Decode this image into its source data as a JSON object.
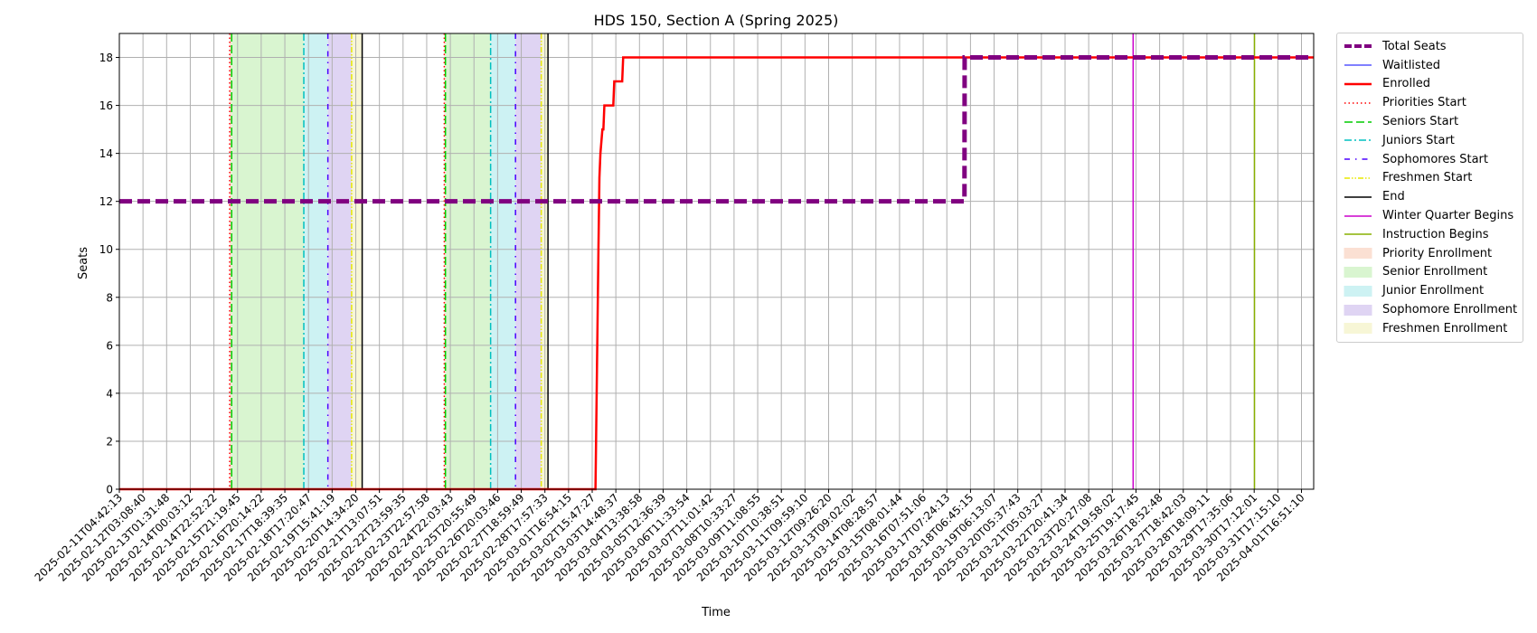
{
  "chart_data": {
    "type": "line",
    "title": "HDS 150, Section A (Spring 2025)",
    "xlabel": "Time",
    "ylabel": "Seats",
    "x_range": [
      "2025-02-11T04:42:13",
      "2025-04-02T12:00:00"
    ],
    "ylim": [
      0,
      19
    ],
    "yticks": [
      0,
      2,
      4,
      6,
      8,
      10,
      12,
      14,
      16,
      18
    ],
    "grid": true,
    "legend_position": "outside-top-right",
    "xtick_labels": [
      "2025-02-11T04:42:13",
      "2025-02-12T03:08:40",
      "2025-02-13T01:31:48",
      "2025-02-14T00:03:12",
      "2025-02-14T22:52:22",
      "2025-02-15T21:19:45",
      "2025-02-16T20:14:22",
      "2025-02-17T18:39:35",
      "2025-02-18T17:20:47",
      "2025-02-19T15:41:19",
      "2025-02-20T14:34:20",
      "2025-02-21T13:07:51",
      "2025-02-22T23:59:35",
      "2025-02-23T22:57:58",
      "2025-02-24T22:03:43",
      "2025-02-25T20:55:49",
      "2025-02-26T20:03:46",
      "2025-02-27T18:59:49",
      "2025-02-28T17:57:33",
      "2025-03-01T16:54:15",
      "2025-03-02T15:47:27",
      "2025-03-03T14:48:37",
      "2025-03-04T13:38:58",
      "2025-03-05T12:36:39",
      "2025-03-06T11:33:54",
      "2025-03-07T11:01:42",
      "2025-03-08T10:33:27",
      "2025-03-09T11:08:55",
      "2025-03-10T10:38:51",
      "2025-03-11T09:59:10",
      "2025-03-12T09:26:20",
      "2025-03-13T09:02:02",
      "2025-03-14T08:28:57",
      "2025-03-15T08:01:44",
      "2025-03-16T07:51:06",
      "2025-03-17T07:24:13",
      "2025-03-18T06:45:15",
      "2025-03-19T06:13:07",
      "2025-03-20T05:37:43",
      "2025-03-21T05:03:27",
      "2025-03-22T20:41:34",
      "2025-03-23T20:27:08",
      "2025-03-24T19:58:02",
      "2025-03-25T19:17:45",
      "2025-03-26T18:52:48",
      "2025-03-27T18:42:03",
      "2025-03-28T18:09:11",
      "2025-03-29T17:35:06",
      "2025-03-30T17:12:01",
      "2025-03-31T17:15:10",
      "2025-04-01T16:51:10"
    ],
    "series": [
      {
        "name": "Total Seats",
        "color": "#800080",
        "style": "dashed",
        "x": [
          "2025-02-11T04:42:13",
          "2025-03-18T19:00:00",
          "2025-03-18T19:10:00",
          "2025-04-02T12:00:00"
        ],
        "y": [
          12,
          12,
          18,
          18
        ]
      },
      {
        "name": "Waitlisted",
        "color": "#0000ff",
        "style": "solid",
        "x": [
          "2025-02-11T04:42:13",
          "2025-04-02T12:00:00"
        ],
        "y": [
          0,
          0
        ]
      },
      {
        "name": "Enrolled",
        "color": "#ff0000",
        "style": "solid",
        "x": [
          "2025-02-11T04:42:13",
          "2025-03-03T06:00:00",
          "2025-03-03T07:30:00",
          "2025-03-03T09:00:00",
          "2025-03-03T10:00:00",
          "2025-03-03T11:00:00",
          "2025-03-03T13:00:00",
          "2025-03-03T14:00:00",
          "2025-03-03T15:00:00",
          "2025-03-03T17:00:00",
          "2025-03-04T00:00:00",
          "2025-03-04T01:00:00",
          "2025-03-04T09:00:00",
          "2025-03-04T10:00:00",
          "2025-04-02T12:00:00"
        ],
        "y": [
          0,
          0,
          5,
          10,
          13,
          14,
          15,
          15,
          16,
          16,
          16,
          17,
          17,
          18,
          18
        ]
      }
    ],
    "vlines": [
      {
        "name": "Priorities Start",
        "color": "#ff0000",
        "style": "dotted",
        "x": [
          "2025-02-15T20:15:00",
          "2025-02-24T21:10:00"
        ]
      },
      {
        "name": "Seniors Start",
        "color": "#00cc00",
        "style": "dashed",
        "x": [
          "2025-02-15T22:15:00",
          "2025-02-24T22:20:00"
        ]
      },
      {
        "name": "Juniors Start",
        "color": "#00c0c0",
        "style": "dashdot",
        "x": [
          "2025-02-18T23:10:00",
          "2025-02-26T20:00:00"
        ]
      },
      {
        "name": "Sophomores Start",
        "color": "#4b00ff",
        "style": "loosedashdot",
        "x": [
          "2025-02-19T23:30:00",
          "2025-02-27T21:10:00"
        ]
      },
      {
        "name": "Freshmen Start",
        "color": "#e8e800",
        "style": "dashdotdot",
        "x": [
          "2025-02-20T23:30:00",
          "2025-02-28T23:10:00"
        ]
      },
      {
        "name": "End",
        "color": "#000000",
        "style": "solid",
        "x": [
          "2025-02-21T10:10:00",
          "2025-03-01T06:00:00"
        ]
      },
      {
        "name": "Winter Quarter Begins",
        "color": "#cc00cc",
        "style": "solid",
        "x": [
          "2025-03-25T21:30:00"
        ]
      },
      {
        "name": "Instruction Begins",
        "color": "#88b000",
        "style": "solid",
        "x": [
          "2025-03-31T00:10:00"
        ]
      }
    ],
    "spans": [
      {
        "name": "Priority Enrollment",
        "color": "#fbe0d3",
        "ranges": [
          [
            "2025-02-15T20:15:00",
            "2025-02-15T22:15:00"
          ],
          [
            "2025-02-24T21:10:00",
            "2025-02-24T22:20:00"
          ]
        ]
      },
      {
        "name": "Senior Enrollment",
        "color": "#d9f5d0",
        "ranges": [
          [
            "2025-02-15T22:15:00",
            "2025-02-18T23:10:00"
          ],
          [
            "2025-02-24T22:20:00",
            "2025-02-26T20:00:00"
          ]
        ]
      },
      {
        "name": "Junior Enrollment",
        "color": "#cdf2f3",
        "ranges": [
          [
            "2025-02-18T23:10:00",
            "2025-02-19T23:30:00"
          ],
          [
            "2025-02-26T20:00:00",
            "2025-02-27T21:10:00"
          ]
        ]
      },
      {
        "name": "Sophomore Enrollment",
        "color": "#dfd4f3",
        "ranges": [
          [
            "2025-02-19T23:30:00",
            "2025-02-20T23:30:00"
          ],
          [
            "2025-02-27T21:10:00",
            "2025-02-28T23:10:00"
          ]
        ]
      },
      {
        "name": "Freshmen Enrollment",
        "color": "#f7f6d6",
        "ranges": [
          [
            "2025-02-20T23:30:00",
            "2025-02-21T10:10:00"
          ],
          [
            "2025-02-28T23:10:00",
            "2025-03-01T06:00:00"
          ]
        ]
      }
    ],
    "legend": [
      {
        "label": "Total Seats",
        "kind": "line",
        "color": "#800080",
        "style": "dashed",
        "width": 4
      },
      {
        "label": "Waitlisted",
        "kind": "line",
        "color": "#0000ff",
        "style": "solid",
        "width": 1
      },
      {
        "label": "Enrolled",
        "kind": "line",
        "color": "#ff0000",
        "style": "solid",
        "width": 2.5
      },
      {
        "label": "Priorities Start",
        "kind": "line",
        "color": "#ff0000",
        "style": "dotted",
        "width": 1.5
      },
      {
        "label": "Seniors Start",
        "kind": "line",
        "color": "#00cc00",
        "style": "dashed",
        "width": 1.5
      },
      {
        "label": "Juniors Start",
        "kind": "line",
        "color": "#00c0c0",
        "style": "dashdot",
        "width": 1.5
      },
      {
        "label": "Sophomores Start",
        "kind": "line",
        "color": "#4b00ff",
        "style": "loosedashdot",
        "width": 1.5
      },
      {
        "label": "Freshmen Start",
        "kind": "line",
        "color": "#e8e800",
        "style": "dashdotdot",
        "width": 1.5
      },
      {
        "label": "End",
        "kind": "line",
        "color": "#000000",
        "style": "solid",
        "width": 1.5
      },
      {
        "label": "Winter Quarter Begins",
        "kind": "line",
        "color": "#cc00cc",
        "style": "solid",
        "width": 1.5
      },
      {
        "label": "Instruction Begins",
        "kind": "line",
        "color": "#88b000",
        "style": "solid",
        "width": 1.5
      },
      {
        "label": "Priority Enrollment",
        "kind": "patch",
        "color": "#fbe0d3"
      },
      {
        "label": "Senior Enrollment",
        "kind": "patch",
        "color": "#d9f5d0"
      },
      {
        "label": "Junior Enrollment",
        "kind": "patch",
        "color": "#cdf2f3"
      },
      {
        "label": "Sophomore Enrollment",
        "kind": "patch",
        "color": "#dfd4f3"
      },
      {
        "label": "Freshmen Enrollment",
        "kind": "patch",
        "color": "#f7f6d6"
      }
    ]
  }
}
